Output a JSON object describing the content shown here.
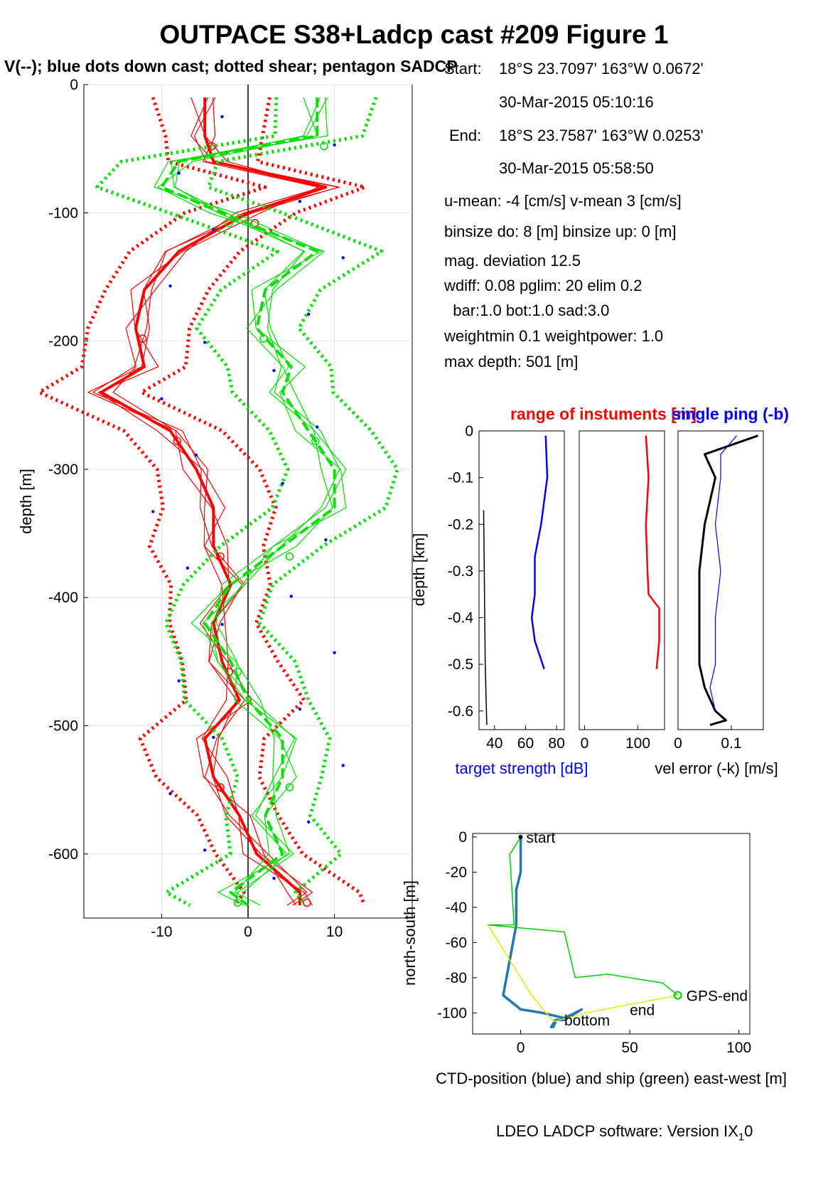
{
  "title": "OUTPACE S38+Ladcp cast #209  Figure 1",
  "subtitle": "V(--); blue dots down cast; dotted shear; pentagon SADCP",
  "info": {
    "start_label": "Start:",
    "start_pos": "18°S 23.7097'     163°W  0.0672'",
    "start_time": "30-Mar-2015 05:10:16",
    "end_label": "End:",
    "end_pos": "18°S 23.7587'     163°W  0.0253'",
    "end_time": "30-Mar-2015 05:58:50",
    "uv_mean": "u-mean:  -4 [cm/s]    v-mean   3 [cm/s]",
    "binsize": "binsize do: 8 [m]  binsize up:  0 [m]",
    "magdev": "mag. deviation 12.5",
    "wdiff": "wdiff: 0.08  pglim: 20  elim 0.2",
    "barbot": "  bar:1.0 bot:1.0 sad:3.0",
    "weight": "weightmin 0.1  weightpower: 1.0",
    "maxdepth": "max depth: 501 [m]"
  },
  "footer": "LDEO LADCP software: Version IX",
  "footer_sub": "1",
  "footer_end": "0",
  "colors": {
    "u": "#ff0000",
    "v": "#00e000",
    "blue": "#0000ff",
    "ctd": "#1f77b4",
    "ship": "#00cc00",
    "yellow": "#ffff00"
  },
  "chart_data": [
    {
      "type": "line",
      "name": "velocity-profile",
      "xlabel": "",
      "ylabel": "depth [m]",
      "xlim": [
        -19,
        19
      ],
      "ylim": [
        -650,
        0
      ],
      "xticks": [
        -10,
        0,
        10
      ],
      "yticks": [
        0,
        -100,
        -200,
        -300,
        -400,
        -500,
        -600
      ],
      "grid": true,
      "series": [
        {
          "color": "red",
          "depth": [
            -10,
            -40,
            -60,
            -80,
            -100,
            -130,
            -160,
            -190,
            -220,
            -240,
            -270,
            -300,
            -330,
            -360,
            -390,
            -420,
            -450,
            -480,
            -510,
            -540,
            -570,
            -600,
            -630,
            -640
          ],
          "values": [
            -5,
            -5,
            -4,
            9,
            0,
            -8,
            -12,
            -13,
            -12,
            -17,
            -9,
            -6,
            -4,
            -4,
            -2,
            -4,
            -3,
            -1,
            -5,
            -4,
            -1,
            1,
            6,
            6
          ]
        },
        {
          "color": "green",
          "depth": [
            -10,
            -40,
            -60,
            -80,
            -100,
            -130,
            -160,
            -190,
            -220,
            -240,
            -270,
            -300,
            -330,
            -360,
            -390,
            -420,
            -450,
            -480,
            -510,
            -540,
            -570,
            -600,
            -630,
            -640
          ],
          "values": [
            8,
            8,
            -8,
            -10,
            -3,
            8,
            2,
            1,
            5,
            4,
            7,
            10,
            10,
            4,
            -2,
            -5,
            -2,
            0,
            4,
            4,
            2,
            4,
            -2,
            0
          ]
        }
      ]
    },
    {
      "type": "line",
      "name": "target-strength",
      "title": "range of instuments [m]",
      "xlabel": "target strength [dB]",
      "ylabel": "depth [km]",
      "xlim": [
        30,
        85
      ],
      "ylim": [
        -0.64,
        0
      ],
      "xticks": [
        40,
        60,
        80
      ],
      "yticks": [
        0,
        -0.1,
        -0.2,
        -0.3,
        -0.4,
        -0.5,
        -0.6
      ],
      "series": [
        {
          "color": "blue",
          "depth": [
            -0.01,
            -0.1,
            -0.2,
            -0.27,
            -0.35,
            -0.4,
            -0.45,
            -0.5,
            -0.51
          ],
          "values": [
            73,
            74,
            70,
            66,
            66,
            64,
            66,
            71,
            72
          ]
        },
        {
          "color": "black",
          "depth": [
            -0.17,
            -0.5,
            -0.63
          ],
          "values": [
            33,
            34,
            35
          ]
        }
      ]
    },
    {
      "type": "line",
      "name": "range",
      "xlim": [
        -10,
        150
      ],
      "ylim": [
        -0.64,
        0
      ],
      "xticks": [
        0,
        100
      ],
      "series": [
        {
          "color": "red",
          "depth": [
            -0.01,
            -0.1,
            -0.2,
            -0.3,
            -0.35,
            -0.38,
            -0.45,
            -0.51
          ],
          "values": [
            115,
            120,
            115,
            118,
            120,
            140,
            140,
            135
          ]
        }
      ]
    },
    {
      "type": "line",
      "name": "vel-error",
      "title": "single ping (-b)",
      "xlabel": "vel error (-k) [m/s]",
      "xlim": [
        0,
        0.16
      ],
      "ylim": [
        -0.64,
        0
      ],
      "xticks": [
        0,
        0.1
      ],
      "series": [
        {
          "color": "black",
          "depth": [
            -0.01,
            -0.05,
            -0.1,
            -0.2,
            -0.3,
            -0.4,
            -0.5,
            -0.55,
            -0.6,
            -0.62,
            -0.63
          ],
          "values": [
            0.15,
            0.05,
            0.07,
            0.05,
            0.04,
            0.04,
            0.04,
            0.05,
            0.07,
            0.09,
            0.06
          ]
        },
        {
          "color": "blue",
          "depth": [
            -0.01,
            -0.05,
            -0.1,
            -0.2,
            -0.3,
            -0.4,
            -0.5,
            -0.55,
            -0.6
          ],
          "values": [
            0.11,
            0.08,
            0.08,
            0.07,
            0.08,
            0.07,
            0.07,
            0.06,
            0.07
          ]
        }
      ]
    },
    {
      "type": "line",
      "name": "position",
      "xlabel": "CTD-position (blue) and ship (green) east-west [m]",
      "ylabel": "north-south [m]",
      "xlim": [
        -22,
        105
      ],
      "ylim": [
        -112,
        2
      ],
      "xticks": [
        0,
        50,
        100
      ],
      "yticks": [
        0,
        -20,
        -40,
        -60,
        -80,
        -100
      ],
      "labels": {
        "start": "start",
        "gps_end": "GPS-end",
        "end": "end",
        "bottom": "bottom"
      },
      "series": [
        {
          "color": "blue",
          "x": [
            0,
            0,
            -2,
            -2,
            -5,
            -8,
            -3,
            0,
            10,
            20,
            25,
            28,
            20,
            16,
            14,
            15,
            16
          ],
          "y": [
            0,
            -20,
            -30,
            -50,
            -70,
            -90,
            -95,
            -98,
            -100,
            -103,
            -100,
            -98,
            -104,
            -104,
            -108,
            -108,
            -105
          ]
        },
        {
          "color": "green",
          "x": [
            0,
            -5,
            -4,
            -3,
            -15,
            20,
            25,
            40,
            65,
            72
          ],
          "y": [
            0,
            -10,
            -30,
            -50,
            -50,
            -54,
            -80,
            -78,
            -83,
            -90
          ]
        },
        {
          "color": "yellow",
          "x": [
            -15,
            -5,
            5,
            15,
            30,
            72
          ],
          "y": [
            -50,
            -70,
            -90,
            -105,
            -100,
            -90
          ]
        }
      ]
    }
  ]
}
